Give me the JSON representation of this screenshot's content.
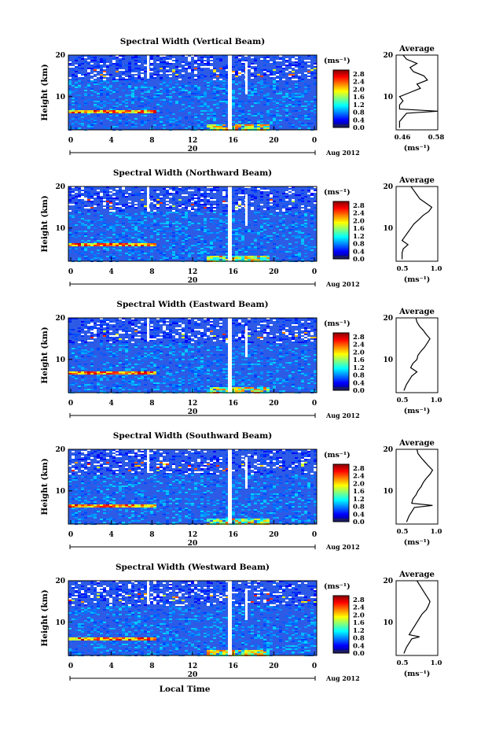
{
  "figure": {
    "xlabel": "Local Time",
    "date_label": "Aug 2012",
    "day_marker": "20",
    "ylabel": "Height (km)",
    "colorbar_unit": "(ms⁻¹)",
    "average_title": "Average",
    "average_unit": "(ms⁻¹)"
  },
  "chart_data": [
    {
      "type": "heatmap",
      "title": "Spectral Width (Vertical Beam)",
      "xlabel": "Local Time",
      "ylabel": "Height (km)",
      "x_ticks": [
        "0",
        "4",
        "8",
        "12",
        "16",
        "20",
        "0"
      ],
      "xlim": [
        0,
        24
      ],
      "y_ticks": [
        "10",
        "20"
      ],
      "ylim": [
        2,
        20
      ],
      "colorbar_ticks": [
        "0.0",
        "0.4",
        "0.8",
        "1.2",
        "1.6",
        "2.0",
        "2.4",
        "2.8"
      ],
      "clim": [
        0,
        3.0
      ],
      "layer_km": 6.5,
      "average_profile": {
        "title": "Average",
        "x_ticks": [
          "0.46",
          "0.58"
        ],
        "xlim": [
          0.46,
          0.58
        ],
        "heights_km": [
          2.5,
          4,
          5,
          6,
          6.5,
          7,
          8,
          9,
          10,
          11,
          12,
          13,
          14,
          15,
          16,
          17,
          18,
          19,
          20
        ],
        "values": [
          0.47,
          0.47,
          0.48,
          0.49,
          0.58,
          0.47,
          0.47,
          0.48,
          0.47,
          0.5,
          0.53,
          0.52,
          0.55,
          0.54,
          0.51,
          0.5,
          0.52,
          0.49,
          0.48
        ]
      }
    },
    {
      "type": "heatmap",
      "title": "Spectral Width (Northward Beam)",
      "xlabel": "Local Time",
      "ylabel": "Height (km)",
      "x_ticks": [
        "0",
        "4",
        "8",
        "12",
        "16",
        "20",
        "0"
      ],
      "xlim": [
        0,
        24
      ],
      "y_ticks": [
        "10",
        "20"
      ],
      "ylim": [
        2,
        20
      ],
      "colorbar_ticks": [
        "0.0",
        "0.4",
        "0.8",
        "1.2",
        "1.6",
        "2.0",
        "2.4",
        "2.8"
      ],
      "clim": [
        0,
        3.0
      ],
      "layer_km": 6.0,
      "average_profile": {
        "title": "Average",
        "x_ticks": [
          "0.5",
          "1.0"
        ],
        "xlim": [
          0.4,
          1.1
        ],
        "heights_km": [
          2.5,
          4,
          5,
          6,
          7,
          8,
          9,
          10,
          11,
          12,
          13,
          14,
          15,
          16,
          17,
          18,
          19,
          20
        ],
        "values": [
          0.5,
          0.5,
          0.52,
          0.6,
          0.5,
          0.55,
          0.6,
          0.65,
          0.7,
          0.78,
          0.85,
          0.95,
          1.0,
          0.9,
          0.8,
          0.75,
          0.7,
          0.65
        ]
      }
    },
    {
      "type": "heatmap",
      "title": "Spectral Width (Eastward Beam)",
      "xlabel": "Local Time",
      "ylabel": "Height (km)",
      "x_ticks": [
        "0",
        "4",
        "8",
        "12",
        "16",
        "20",
        "0"
      ],
      "xlim": [
        0,
        24
      ],
      "y_ticks": [
        "10",
        "20"
      ],
      "ylim": [
        2,
        20
      ],
      "colorbar_ticks": [
        "0.0",
        "0.4",
        "0.8",
        "1.2",
        "1.6",
        "2.0",
        "2.4",
        "2.8"
      ],
      "clim": [
        0,
        3.0
      ],
      "layer_km": 7.0,
      "average_profile": {
        "title": "Average",
        "x_ticks": [
          "0.5",
          "1.0"
        ],
        "xlim": [
          0.3,
          1.1
        ],
        "heights_km": [
          2.5,
          4,
          5,
          6,
          7,
          8,
          9,
          10,
          11,
          12,
          13,
          14,
          15,
          16,
          17,
          18,
          19,
          20
        ],
        "values": [
          0.45,
          0.5,
          0.55,
          0.6,
          0.7,
          0.58,
          0.62,
          0.7,
          0.72,
          0.78,
          0.85,
          0.9,
          0.95,
          0.88,
          0.82,
          0.75,
          0.7,
          0.68
        ]
      }
    },
    {
      "type": "heatmap",
      "title": "Spectral Width (Southward Beam)",
      "xlabel": "Local Time",
      "ylabel": "Height (km)",
      "x_ticks": [
        "0",
        "4",
        "8",
        "12",
        "16",
        "20",
        "0"
      ],
      "xlim": [
        0,
        24
      ],
      "y_ticks": [
        "10",
        "20"
      ],
      "ylim": [
        2,
        20
      ],
      "colorbar_ticks": [
        "0.0",
        "0.4",
        "0.8",
        "1.2",
        "1.6",
        "2.0",
        "2.4",
        "2.8"
      ],
      "clim": [
        0,
        3.0
      ],
      "layer_km": 6.5,
      "average_profile": {
        "title": "Average",
        "x_ticks": [
          "0.5",
          "1.0"
        ],
        "xlim": [
          0.3,
          1.1
        ],
        "heights_km": [
          2.5,
          4,
          5,
          6,
          6.5,
          7,
          8,
          9,
          10,
          11,
          12,
          13,
          14,
          15,
          16,
          17,
          18,
          19,
          20
        ],
        "values": [
          0.5,
          0.55,
          0.6,
          0.65,
          1.0,
          0.6,
          0.62,
          0.68,
          0.72,
          0.78,
          0.82,
          0.88,
          0.95,
          1.0,
          0.92,
          0.85,
          0.78,
          0.72,
          0.7
        ]
      }
    },
    {
      "type": "heatmap",
      "title": "Spectral Width (Westward Beam)",
      "xlabel": "Local Time",
      "ylabel": "Height (km)",
      "x_ticks": [
        "0",
        "4",
        "8",
        "12",
        "16",
        "20",
        "0"
      ],
      "xlim": [
        0,
        24
      ],
      "y_ticks": [
        "10",
        "20"
      ],
      "ylim": [
        2,
        20
      ],
      "colorbar_ticks": [
        "0.0",
        "0.4",
        "0.8",
        "1.2",
        "1.6",
        "2.0",
        "2.4",
        "2.8"
      ],
      "clim": [
        0,
        3.0
      ],
      "layer_km": 6.0,
      "average_profile": {
        "title": "Average",
        "x_ticks": [
          "0.5",
          "1.0"
        ],
        "xlim": [
          0.3,
          1.1
        ],
        "heights_km": [
          2.5,
          4,
          5,
          6,
          6.5,
          7,
          8,
          9,
          10,
          11,
          12,
          13,
          14,
          15,
          16,
          17,
          18,
          19,
          20
        ],
        "values": [
          0.45,
          0.5,
          0.55,
          0.6,
          0.75,
          0.55,
          0.6,
          0.65,
          0.7,
          0.75,
          0.8,
          0.88,
          0.92,
          0.95,
          0.9,
          0.85,
          0.8,
          0.75,
          0.7
        ]
      }
    }
  ]
}
